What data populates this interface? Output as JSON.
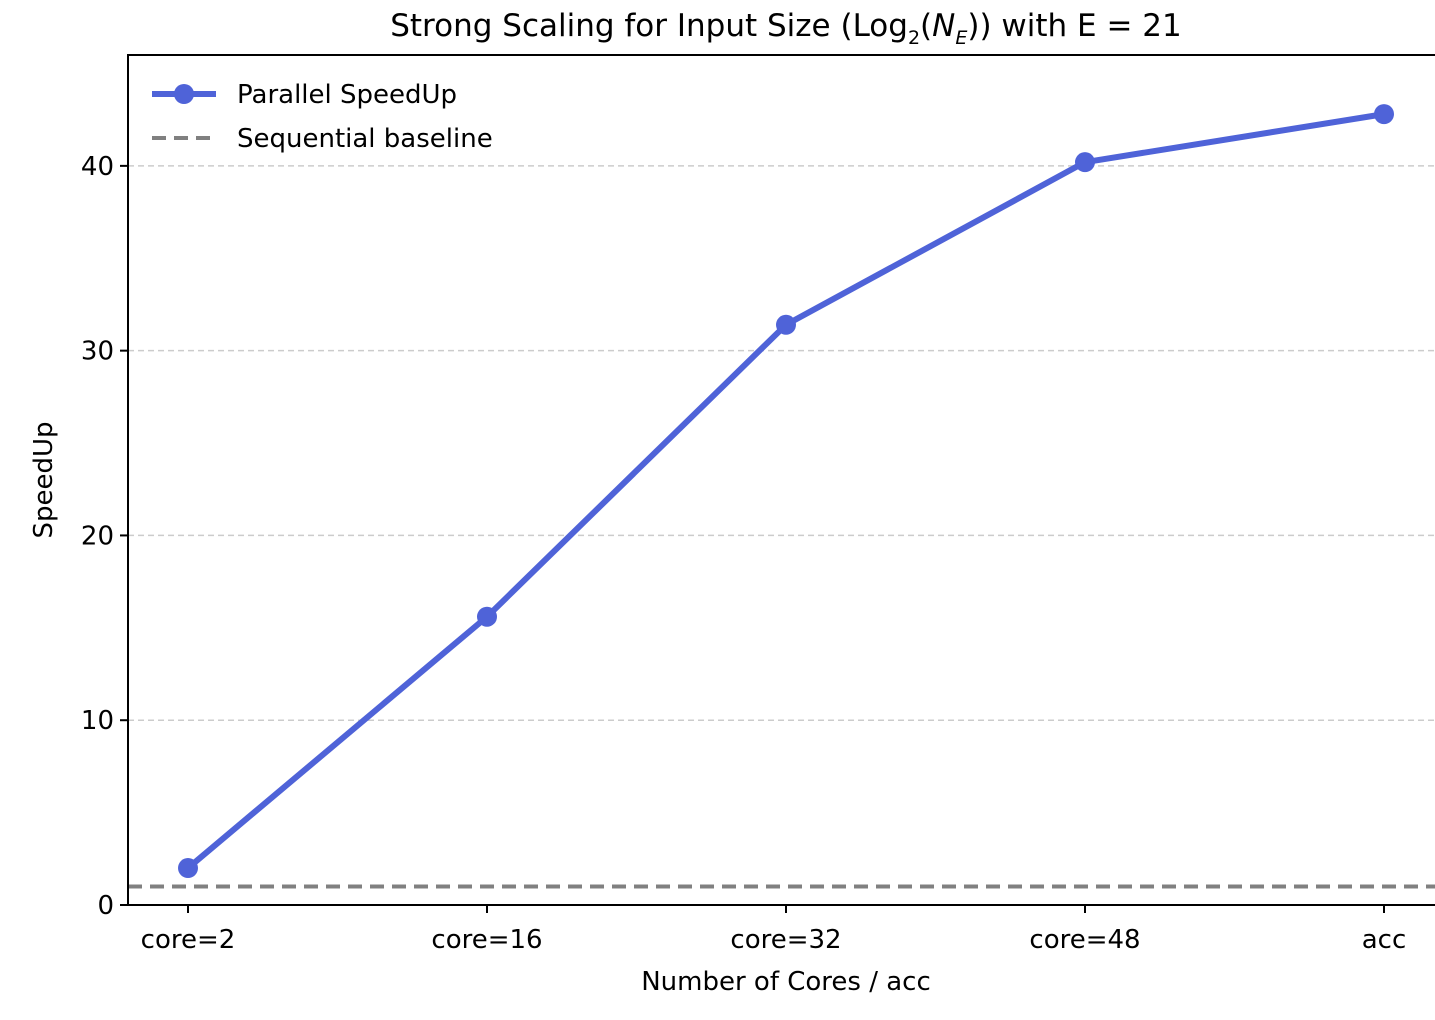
{
  "chart_data": {
    "type": "line",
    "title_parts": {
      "prefix": "Strong Scaling for Input Size (Log",
      "log_base": "2",
      "open": "(",
      "n_symbol": "N",
      "n_subscript": "E",
      "suffix": ")) with E = 21"
    },
    "xlabel": "Number of Cores / acc",
    "ylabel": "SpeedUp",
    "categories": [
      "core=2",
      "core=16",
      "core=32",
      "core=48",
      "acc"
    ],
    "series": [
      {
        "name": "Parallel SpeedUp",
        "values": [
          2.0,
          15.6,
          31.4,
          40.2,
          42.8
        ],
        "color": "#4f63d8",
        "marker": "circle"
      }
    ],
    "baseline": {
      "name": "Sequential baseline",
      "value": 1.0,
      "color": "#808080",
      "style": "dashed"
    },
    "ylim": [
      0,
      46
    ],
    "yticks": [
      0,
      10,
      20,
      30,
      40
    ],
    "grid": "horizontal-dashed",
    "legend_position": "top-left"
  }
}
